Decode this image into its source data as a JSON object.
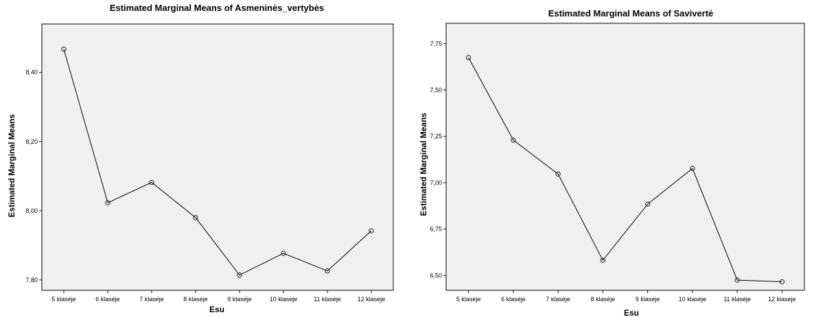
{
  "chart_data": [
    {
      "type": "line",
      "title": "Estimated Marginal Means of Asmeninės_vertybės",
      "xlabel": "Esu",
      "ylabel": "Estimated Marginal Means",
      "categories": [
        "5 klasėje",
        "6 klasėje",
        "7 klasėje",
        "8 klasėje",
        "9 klasėje",
        "10 klasėje",
        "11 klasėje",
        "12 klasėje"
      ],
      "values": [
        8.467,
        8.023,
        8.082,
        7.98,
        7.814,
        7.877,
        7.826,
        7.942
      ],
      "ylim": [
        7.77,
        8.54
      ],
      "yticks": [
        7.8,
        8.0,
        8.2,
        8.4
      ],
      "ytick_labels": [
        "7,80",
        "8,00",
        "8,20",
        "8,40"
      ],
      "grid": false,
      "plot_background": "#f0f0f0",
      "line_color": "#000000"
    },
    {
      "type": "line",
      "title": "Estimated Marginal Means of Savivertė",
      "xlabel": "Esu",
      "ylabel": "Estimated Marginal Means",
      "categories": [
        "5 klasėje",
        "6 klasėje",
        "7 klasėje",
        "8 klasėje",
        "9 klasėje",
        "10 klasėje",
        "11 klasėje",
        "12 klasėje"
      ],
      "values": [
        7.675,
        7.23,
        7.047,
        6.582,
        6.885,
        7.077,
        6.475,
        6.466
      ],
      "ylim": [
        6.42,
        7.86
      ],
      "yticks": [
        6.5,
        6.75,
        7.0,
        7.25,
        7.5,
        7.75
      ],
      "ytick_labels": [
        "6,50",
        "6,75",
        "7,00",
        "7,25",
        "7,50",
        "7,75"
      ],
      "grid": false,
      "plot_background": "#f0f0f0",
      "line_color": "#000000"
    }
  ]
}
